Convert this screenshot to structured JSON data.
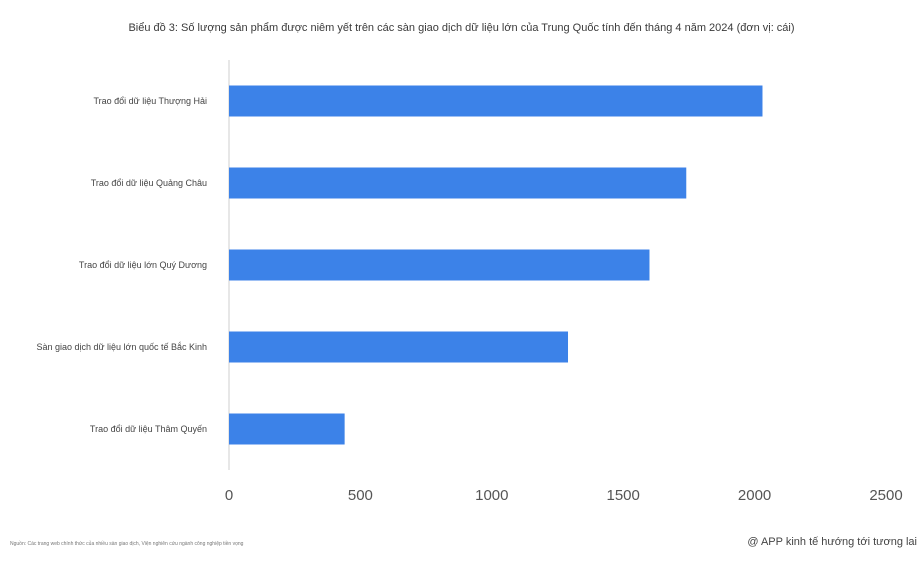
{
  "title": "Biểu đồ 3: Số lượng sản phẩm được niêm yết trên các sàn giao dịch dữ liệu lớn của Trung Quốc tính đến tháng 4 năm 2024 (đơn vị: cái)",
  "source": "Nguồn: Các trang web chính thức của nhiều sàn giao dịch, Viện nghiên cứu ngành công nghiệp tiền vọng",
  "credit": "@ APP kinh tế hướng tới tương lai",
  "colors": {
    "bar": "#3c82e8",
    "axis": "#cfcfcf"
  },
  "chart_data": {
    "type": "bar",
    "orientation": "horizontal",
    "title": "Biểu đồ 3: Số lượng sản phẩm được niêm yết trên các sàn giao dịch dữ liệu lớn của Trung Quốc tính đến tháng 4 năm 2024 (đơn vị: cái)",
    "categories": [
      "Trao đổi dữ liệu Thượng Hải",
      "Trao đổi dữ liệu Quảng Châu",
      "Trao đổi dữ liệu lớn Quý Dương",
      "Sàn giao dịch dữ liệu lớn quốc tế Bắc Kinh",
      "Trao đổi dữ liệu Thâm Quyến"
    ],
    "values": [
      2030,
      1740,
      1600,
      1290,
      440
    ],
    "xlim": [
      0,
      2500
    ],
    "xticks": [
      "0",
      "500",
      "1000",
      "1500",
      "2000",
      "2500"
    ],
    "grid": false,
    "legend": "none"
  }
}
